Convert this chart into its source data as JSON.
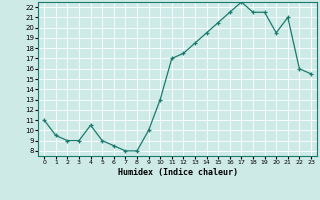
{
  "x": [
    0,
    1,
    2,
    3,
    4,
    5,
    6,
    7,
    8,
    9,
    10,
    11,
    12,
    13,
    14,
    15,
    16,
    17,
    18,
    19,
    20,
    21,
    22,
    23
  ],
  "y": [
    11,
    9.5,
    9,
    9,
    10.5,
    9,
    8.5,
    8,
    8,
    10,
    13,
    17,
    17.5,
    18.5,
    19.5,
    20.5,
    21.5,
    22.5,
    21.5,
    21.5,
    19.5,
    21,
    16,
    15.5
  ],
  "line_color": "#1a7a6e",
  "marker_color": "#1a7a6e",
  "bg_color": "#ceeae7",
  "grid_major_color": "#ffffff",
  "grid_minor_color": "#ddf0ee",
  "xlabel": "Humidex (Indice chaleur)",
  "ylim": [
    7.5,
    22.5
  ],
  "xlim": [
    -0.5,
    23.5
  ],
  "yticks": [
    8,
    9,
    10,
    11,
    12,
    13,
    14,
    15,
    16,
    17,
    18,
    19,
    20,
    21,
    22
  ],
  "xticks": [
    0,
    1,
    2,
    3,
    4,
    5,
    6,
    7,
    8,
    9,
    10,
    11,
    12,
    13,
    14,
    15,
    16,
    17,
    18,
    19,
    20,
    21,
    22,
    23
  ]
}
